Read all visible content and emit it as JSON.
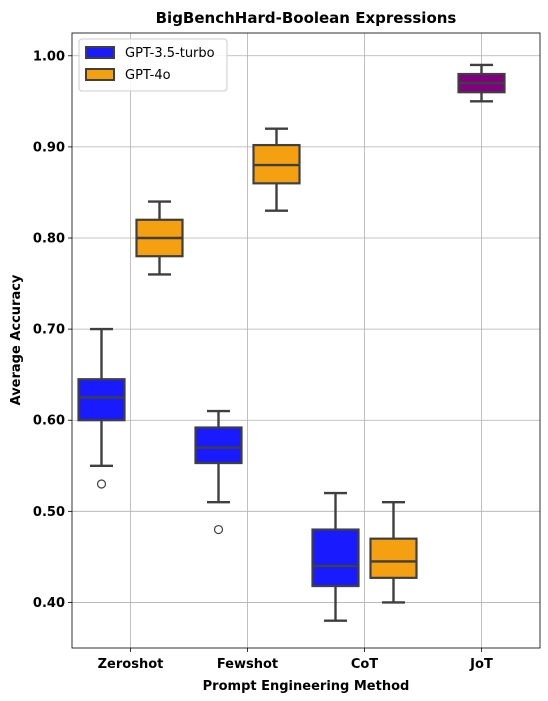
{
  "chart_data": {
    "type": "box",
    "title": "BigBenchHard-Boolean Expressions",
    "xlabel": "Prompt Engineering Method",
    "ylabel": "Average Accuracy",
    "ylim": [
      0.35,
      1.025
    ],
    "yticks": [
      "0.40",
      "0.50",
      "0.60",
      "0.70",
      "0.80",
      "0.90",
      "1.00"
    ],
    "ytick_values": [
      0.4,
      0.5,
      0.6,
      0.7,
      0.8,
      0.9,
      1.0
    ],
    "categories": [
      "Zeroshot",
      "Fewshot",
      "CoT",
      "JoT"
    ],
    "grid": true,
    "legend_position": "top-left",
    "series": [
      {
        "name": "GPT-3.5-turbo",
        "color": "#1a1aff",
        "boxes": [
          {
            "category": "Zeroshot",
            "whisker_low": 0.55,
            "q1": 0.6,
            "median": 0.625,
            "q3": 0.645,
            "whisker_high": 0.7,
            "outliers": [
              0.53
            ]
          },
          {
            "category": "Fewshot",
            "whisker_low": 0.51,
            "q1": 0.553,
            "median": 0.57,
            "q3": 0.592,
            "whisker_high": 0.61,
            "outliers": [
              0.48
            ]
          },
          {
            "category": "CoT",
            "whisker_low": 0.38,
            "q1": 0.418,
            "median": 0.44,
            "q3": 0.48,
            "whisker_high": 0.52,
            "outliers": []
          }
        ]
      },
      {
        "name": "GPT-4o",
        "color": "#f5a011",
        "boxes": [
          {
            "category": "Zeroshot",
            "whisker_low": 0.76,
            "q1": 0.78,
            "median": 0.8,
            "q3": 0.82,
            "whisker_high": 0.84,
            "outliers": []
          },
          {
            "category": "Fewshot",
            "whisker_low": 0.83,
            "q1": 0.86,
            "median": 0.88,
            "q3": 0.902,
            "whisker_high": 0.92,
            "outliers": []
          },
          {
            "category": "CoT",
            "whisker_low": 0.4,
            "q1": 0.427,
            "median": 0.445,
            "q3": 0.47,
            "whisker_high": 0.51,
            "outliers": []
          }
        ]
      },
      {
        "name": "",
        "color": "#800080",
        "boxes": [
          {
            "category": "JoT",
            "whisker_low": 0.95,
            "q1": 0.96,
            "median": 0.97,
            "q3": 0.98,
            "whisker_high": 0.99,
            "outliers": [],
            "centered": true
          }
        ]
      }
    ]
  }
}
